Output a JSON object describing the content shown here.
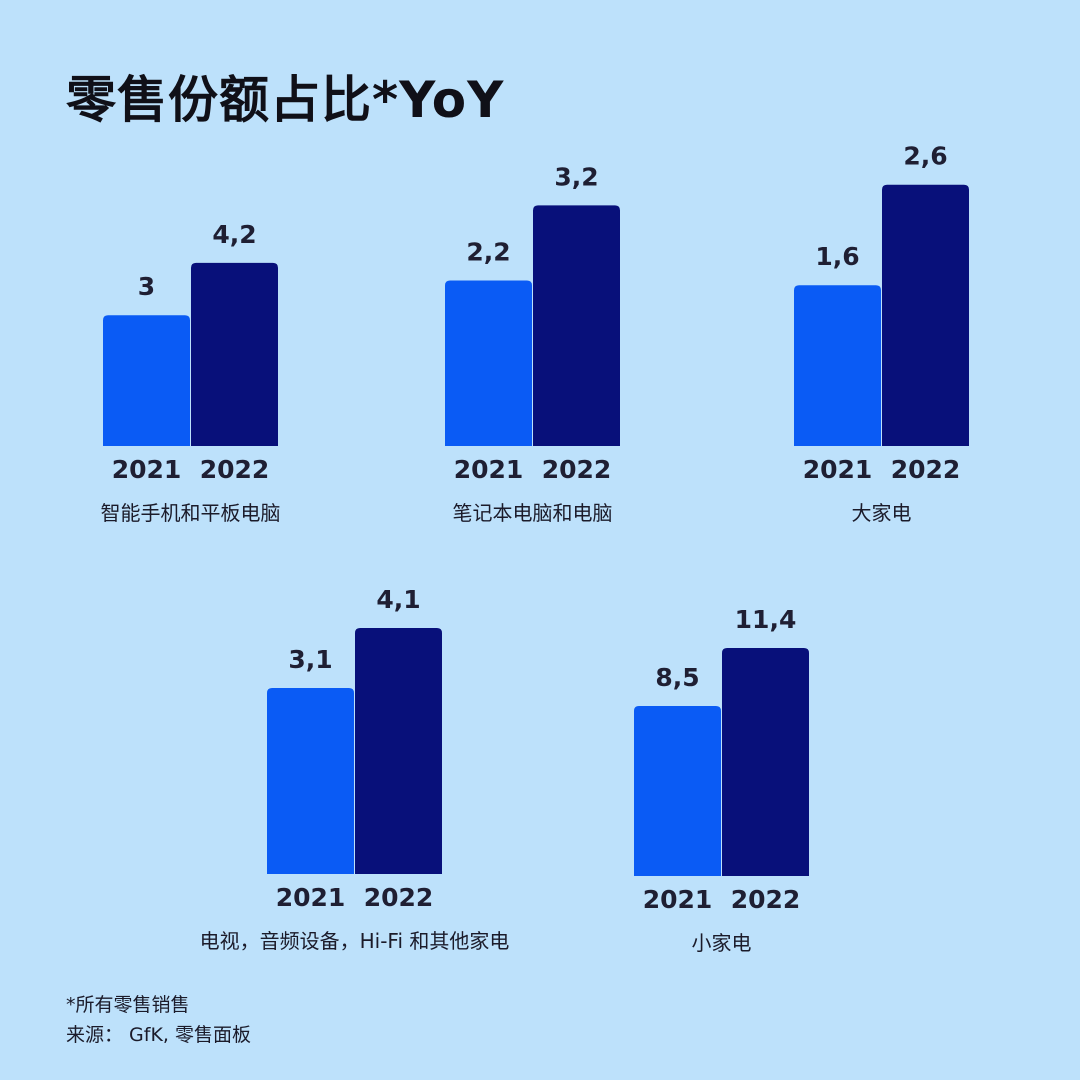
{
  "title": "零售份额占比*YoY",
  "colors": {
    "background": "#bde1fb",
    "bar_2021": "#0a5bf5",
    "bar_2022": "#08107a"
  },
  "chart_data": {
    "type": "bar",
    "series_years": [
      "2021",
      "2022"
    ],
    "groups": [
      {
        "category": "智能手机和平板电脑",
        "values": [
          3,
          4.2
        ],
        "value_labels": [
          "3",
          "4,2"
        ]
      },
      {
        "category": "笔记本电脑和电脑",
        "values": [
          2.2,
          3.2
        ],
        "value_labels": [
          "2,2",
          "3,2"
        ]
      },
      {
        "category": "大家电",
        "values": [
          1.6,
          2.6
        ],
        "value_labels": [
          "1,6",
          "2,6"
        ]
      },
      {
        "category": "电视，音频设备，Hi-Fi 和其他家电",
        "values": [
          3.1,
          4.1
        ],
        "value_labels": [
          "3,1",
          "4,1"
        ]
      },
      {
        "category": "小家电",
        "values": [
          8.5,
          11.4
        ],
        "value_labels": [
          "8,5",
          "11,4"
        ]
      }
    ]
  },
  "footnote": {
    "line1": "*所有零售销售",
    "line2": "来源： GfK, 零售面板"
  }
}
